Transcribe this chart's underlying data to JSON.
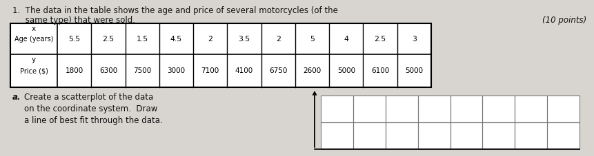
{
  "title_line1": "1.  The data in the table shows the age and price of several motorcycles (of the",
  "title_line2": "     same type) that were sold.",
  "points_label": "(10 points)",
  "x_values": [
    5.5,
    2.5,
    1.5,
    4.5,
    2,
    3.5,
    2,
    5,
    4,
    2.5,
    3
  ],
  "y_values": [
    1800,
    6300,
    7500,
    3000,
    7100,
    4100,
    6750,
    2600,
    5000,
    6100,
    5000
  ],
  "sub_label": "a.",
  "sub_text_line1": "Create a scatterplot of the data",
  "sub_text_line2": "on the coordinate system.  Draw",
  "sub_text_line3": "a line of best fit through the data.",
  "bg_color": "#d8d5d0",
  "text_color": "#111111",
  "grid_line_color": "#777777"
}
